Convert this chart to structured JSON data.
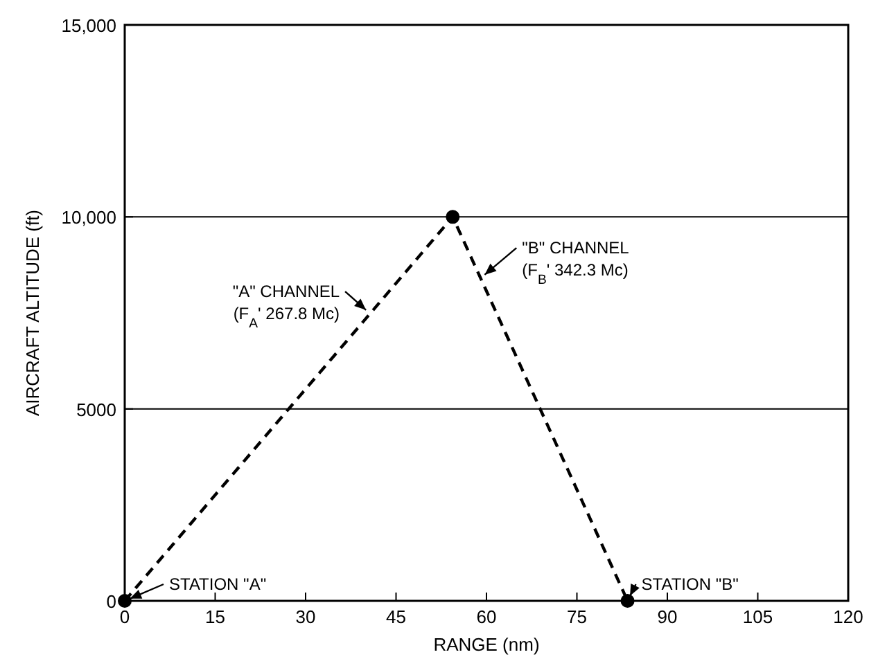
{
  "chart_data": {
    "type": "line",
    "xlabel": "RANGE (nm)",
    "ylabel": "AIRCRAFT ALTITUDE (ft)",
    "x": [
      0,
      54.4,
      83.4
    ],
    "series": [
      {
        "color": "#000000",
        "values": [
          0,
          10000,
          0
        ]
      }
    ],
    "xlim": [
      0,
      120
    ],
    "xticks": [
      0,
      15,
      30,
      45,
      60,
      75,
      90,
      105,
      120
    ],
    "ylim": [
      0,
      15000
    ],
    "yticks": [
      0,
      {
        "value": 5000,
        "label": "5000"
      },
      {
        "value": 10000,
        "label": "10,000"
      },
      {
        "value": 15000,
        "label": "15,000"
      }
    ],
    "grid": "y",
    "marker": "circle",
    "line_style": "dashed",
    "annotations": [
      {
        "text": "STATION \"A\"",
        "x": 0,
        "y": 0
      },
      {
        "text": "\"A\" CHANNEL\n(F$_{A}$' 267.8 Mc)",
        "x": 40.7,
        "y": 7480
      },
      {
        "text": "\"B\" CHANNEL\n(F$_{B}$' 342.3 Mc)",
        "x": 59,
        "y": 8400
      },
      {
        "text": "STATION \"B\"",
        "x": 83.4,
        "y": 0
      }
    ]
  }
}
